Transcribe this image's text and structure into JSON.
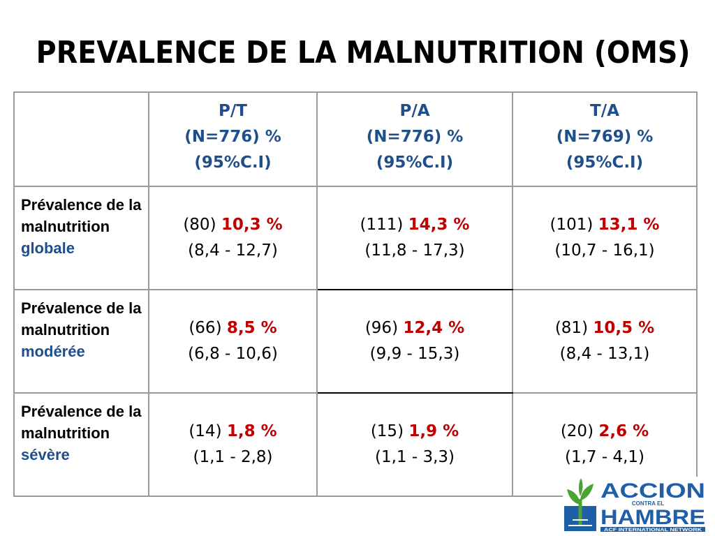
{
  "title": "PREVALENCE DE LA MALNUTRITION (OMS)",
  "table": {
    "headers": [
      {
        "line1": "P/T",
        "line2": "(N=776) %",
        "line3": "(95%C.I)"
      },
      {
        "line1": "P/A",
        "line2": "(N=776) %",
        "line3": "(95%C.I)"
      },
      {
        "line1": "T/A",
        "line2": "(N=769) %",
        "line3": "(95%C.I)"
      }
    ],
    "rows": [
      {
        "label_main": "Prévalence de la malnutrition",
        "label_accent": "globale",
        "cells": [
          {
            "count": "(80)",
            "pct": "10,3 %",
            "ci": "(8,4 - 12,7)"
          },
          {
            "count": "(111)",
            "pct": "14,3 %",
            "ci": "(11,8 - 17,3)"
          },
          {
            "count": "(101)",
            "pct": "13,1 %",
            "ci": "(10,7 - 16,1)"
          }
        ]
      },
      {
        "label_main": "Prévalence de la malnutrition",
        "label_accent": "modérée",
        "cells": [
          {
            "count": "(66)",
            "pct": "8,5 %",
            "ci": "(6,8 - 10,6)"
          },
          {
            "count": "(96)",
            "pct": "12,4 %",
            "ci": "(9,9 - 15,3)"
          },
          {
            "count": "(81)",
            "pct": "10,5 %",
            "ci": "(8,4 - 13,1)"
          }
        ]
      },
      {
        "label_main": "Prévalence de la malnutrition",
        "label_accent": "sévère",
        "cells": [
          {
            "count": "(14)",
            "pct": "1,8 %",
            "ci": "(1,1 - 2,8)"
          },
          {
            "count": "(15)",
            "pct": "1,9 %",
            "ci": "(1,1 - 3,3)"
          },
          {
            "count": "(20)",
            "pct": "2,6 %",
            "ci": "(1,7 - 4,1)"
          }
        ]
      }
    ]
  },
  "logo": {
    "line1": "ACCION",
    "small": "CONTRA EL",
    "line2": "HAMBRE",
    "tagline": "ACF INTERNATIONAL NETWORK"
  },
  "colors": {
    "header_text": "#1f4e8c",
    "percent_text": "#c00000",
    "logo_green": "#4aa334",
    "logo_blue": "#1f5fa8"
  }
}
